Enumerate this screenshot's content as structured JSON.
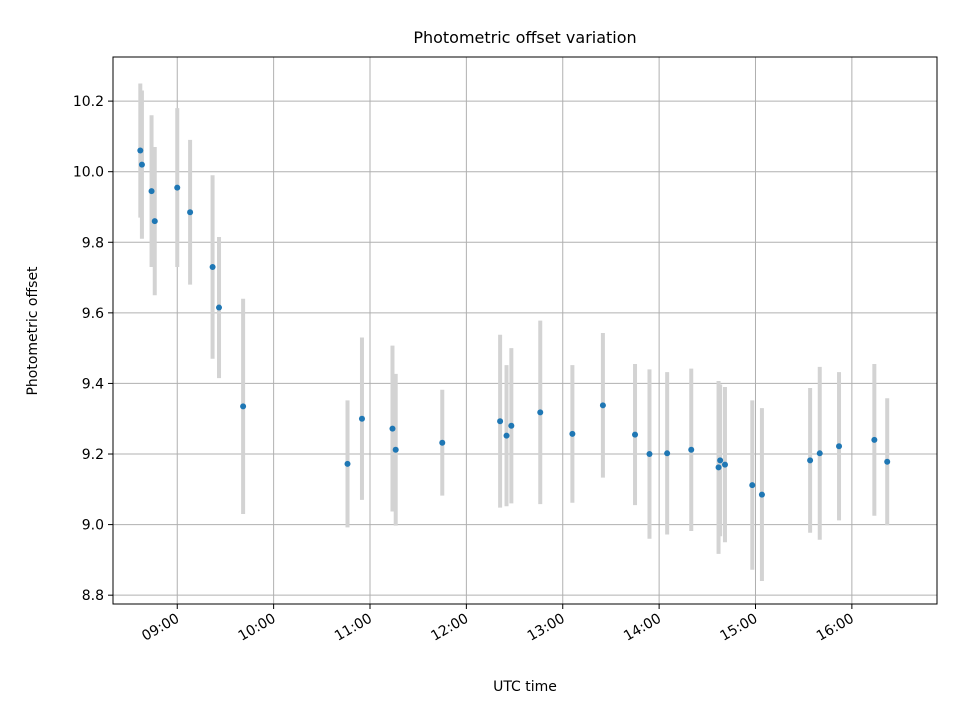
{
  "chart_data": {
    "type": "scatter",
    "title": "Photometric offset variation",
    "xlabel": "UTC time",
    "ylabel": "Photometric offset",
    "grid": true,
    "legend": "none",
    "xlim": [
      "08:20",
      "16:53"
    ],
    "ylim": [
      8.775,
      10.325
    ],
    "x_ticks": [
      "09:00",
      "10:00",
      "11:00",
      "12:00",
      "13:00",
      "14:00",
      "15:00",
      "16:00"
    ],
    "y_ticks": [
      "8.8",
      "9.0",
      "9.2",
      "9.4",
      "9.6",
      "9.8",
      "10.0",
      "10.2"
    ],
    "colors": {
      "point": "#1f77b4",
      "errorbar": "#d3d3d3",
      "grid": "#b0b0b0"
    },
    "series": [
      {
        "x": [
          "08:37",
          "08:38",
          "08:44",
          "08:46",
          "09:00",
          "09:08",
          "09:22",
          "09:26",
          "09:41",
          "10:46",
          "10:55",
          "11:14",
          "11:16",
          "11:45",
          "12:21",
          "12:25",
          "12:28",
          "12:46",
          "13:06",
          "13:25",
          "13:45",
          "13:54",
          "14:05",
          "14:20",
          "14:37",
          "14:38",
          "14:41",
          "14:58",
          "15:04",
          "15:34",
          "15:40",
          "15:52",
          "16:14",
          "16:22"
        ],
        "y": [
          10.06,
          10.02,
          9.945,
          9.86,
          9.955,
          9.885,
          9.73,
          9.615,
          9.335,
          9.172,
          9.3,
          9.272,
          9.212,
          9.232,
          9.293,
          9.252,
          9.28,
          9.318,
          9.257,
          9.338,
          9.255,
          9.2,
          9.202,
          9.212,
          9.162,
          9.182,
          9.17,
          9.112,
          9.085,
          9.182,
          9.202,
          9.222,
          9.24,
          9.178
        ],
        "err": [
          0.19,
          0.21,
          0.215,
          0.21,
          0.225,
          0.205,
          0.26,
          0.2,
          0.305,
          0.18,
          0.23,
          0.235,
          0.215,
          0.15,
          0.245,
          0.2,
          0.22,
          0.26,
          0.195,
          0.205,
          0.2,
          0.24,
          0.23,
          0.23,
          0.245,
          0.215,
          0.22,
          0.24,
          0.245,
          0.205,
          0.245,
          0.21,
          0.215,
          0.18
        ]
      }
    ]
  }
}
